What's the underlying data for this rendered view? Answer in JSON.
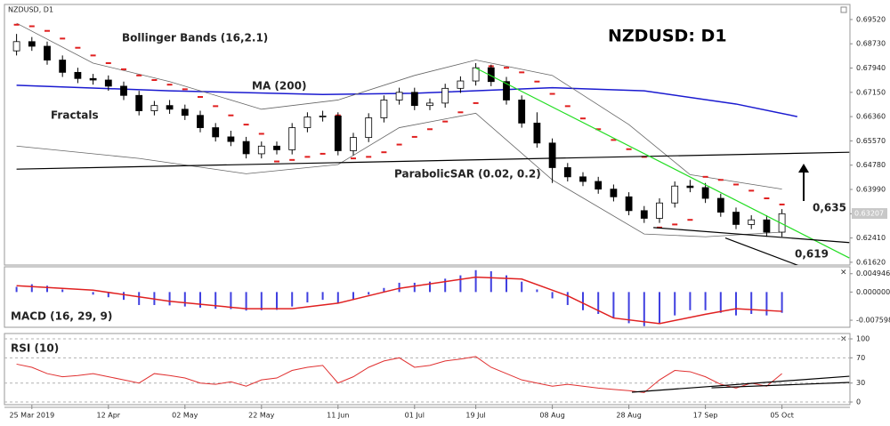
{
  "chart_data": [
    {
      "type": "candlestick",
      "title": "NZDUSD: D1",
      "subtitle": "NZDUSD, D1",
      "categories": [
        null,
        "25 Mar 2019",
        null,
        null,
        null,
        null,
        "12 Apr",
        null,
        null,
        null,
        null,
        "02 May",
        null,
        null,
        null,
        null,
        "22 May",
        null,
        null,
        null,
        null,
        "11 Jun",
        null,
        null,
        null,
        null,
        "01 Jul",
        null,
        null,
        null,
        "19 Jul",
        null,
        null,
        null,
        null,
        "08 Aug",
        null,
        null,
        null,
        null,
        "28 Aug",
        null,
        null,
        null,
        null,
        "17 Sep",
        null,
        null,
        null,
        null,
        "05 Oct"
      ],
      "open": [
        0.685,
        0.688,
        0.6865,
        0.682,
        0.678,
        0.676,
        0.6755,
        0.6735,
        0.6705,
        0.6655,
        0.6672,
        0.666,
        0.664,
        0.66,
        0.657,
        0.6555,
        0.6515,
        0.654,
        0.6528,
        0.66,
        0.6635,
        0.6638,
        0.6525,
        0.6568,
        0.6632,
        0.669,
        0.6715,
        0.6672,
        0.668,
        0.6728,
        0.6752,
        0.6795,
        0.675,
        0.669,
        0.6615,
        0.655,
        0.647,
        0.644,
        0.6425,
        0.64,
        0.6375,
        0.633,
        0.6305,
        0.6355,
        0.641,
        0.6405,
        0.637,
        0.6325,
        0.6285,
        0.63,
        0.626
      ],
      "high": [
        0.6905,
        0.6895,
        0.688,
        0.6835,
        0.6795,
        0.6775,
        0.677,
        0.675,
        0.672,
        0.6687,
        0.669,
        0.6675,
        0.6655,
        0.6615,
        0.659,
        0.657,
        0.6555,
        0.6555,
        0.6615,
        0.665,
        0.6655,
        0.665,
        0.6583,
        0.6647,
        0.6705,
        0.673,
        0.673,
        0.6695,
        0.6743,
        0.6767,
        0.681,
        0.6805,
        0.6765,
        0.6705,
        0.665,
        0.6565,
        0.6485,
        0.6455,
        0.644,
        0.6415,
        0.639,
        0.6345,
        0.637,
        0.6425,
        0.643,
        0.642,
        0.6385,
        0.634,
        0.6315,
        0.6315,
        0.6335
      ],
      "low": [
        0.6835,
        0.685,
        0.6805,
        0.6765,
        0.6745,
        0.674,
        0.672,
        0.669,
        0.664,
        0.664,
        0.6645,
        0.6625,
        0.6585,
        0.6555,
        0.654,
        0.65,
        0.65,
        0.6513,
        0.6513,
        0.6585,
        0.662,
        0.651,
        0.651,
        0.6553,
        0.6617,
        0.6675,
        0.6657,
        0.6657,
        0.6665,
        0.6713,
        0.6737,
        0.6735,
        0.6675,
        0.66,
        0.6535,
        0.642,
        0.6425,
        0.641,
        0.6385,
        0.636,
        0.6315,
        0.629,
        0.629,
        0.634,
        0.639,
        0.6355,
        0.631,
        0.627,
        0.627,
        0.6245,
        0.6245
      ],
      "close": [
        0.688,
        0.6865,
        0.682,
        0.678,
        0.676,
        0.6755,
        0.6735,
        0.6705,
        0.6655,
        0.6672,
        0.666,
        0.664,
        0.66,
        0.657,
        0.6555,
        0.6515,
        0.654,
        0.6528,
        0.66,
        0.6635,
        0.6638,
        0.6525,
        0.6568,
        0.6632,
        0.669,
        0.6715,
        0.6672,
        0.668,
        0.6728,
        0.6752,
        0.6795,
        0.675,
        0.669,
        0.6615,
        0.655,
        0.647,
        0.644,
        0.6425,
        0.64,
        0.6375,
        0.633,
        0.6305,
        0.6355,
        0.641,
        0.6405,
        0.637,
        0.6325,
        0.6285,
        0.63,
        0.626,
        0.632
      ],
      "up_color": "#ffffff",
      "down_color": "#000000",
      "ylim": [
        0.6153,
        0.7001
      ],
      "yticks": [
        {
          "value": 0.6952,
          "label": "0.69520"
        },
        {
          "value": 0.6873,
          "label": "0.68730"
        },
        {
          "value": 0.6794,
          "label": "0.67940"
        },
        {
          "value": 0.6715,
          "label": "0.67150"
        },
        {
          "value": 0.6636,
          "label": "0.66360"
        },
        {
          "value": 0.6557,
          "label": "0.65570"
        },
        {
          "value": 0.6478,
          "label": "0.64780"
        },
        {
          "value": 0.6399,
          "label": "0.63990"
        },
        {
          "value": 0.632,
          "label": "0.63200"
        },
        {
          "value": 0.6241,
          "label": "0.62410"
        },
        {
          "value": 0.6162,
          "label": "0.61620"
        }
      ],
      "last_price": 0.63207,
      "series": [
        {
          "name": "MA (200)",
          "color": "#1a1ad0",
          "x": [
            0,
            10,
            20,
            26,
            35,
            41,
            47,
            51
          ],
          "values": [
            0.6738,
            0.672,
            0.6708,
            0.6712,
            0.673,
            0.672,
            0.6677,
            0.6636
          ]
        },
        {
          "name": "Bollinger Bands (16,2.1)",
          "color": "#666666",
          "x": [
            0,
            5,
            10,
            16,
            21,
            26,
            30,
            35,
            40,
            44,
            50
          ],
          "values": [
            0.694,
            0.681,
            0.675,
            0.666,
            0.669,
            0.677,
            0.682,
            0.677,
            0.661,
            0.6447,
            0.64
          ]
        },
        {
          "color": "#666666",
          "x": [
            0,
            8,
            15,
            21,
            25,
            30,
            35,
            41,
            45,
            50
          ],
          "values": [
            0.654,
            0.65,
            0.645,
            0.648,
            0.66,
            0.6647,
            0.643,
            0.6254,
            0.6245,
            0.626
          ]
        },
        {
          "name": "ParabolicSAR (0.02, 0.2)",
          "color": "#e02020",
          "style": "dots",
          "values": [
            0.6935,
            0.693,
            0.6915,
            0.689,
            0.686,
            0.6835,
            0.681,
            0.679,
            0.677,
            0.6755,
            0.674,
            0.6725,
            0.67,
            0.667,
            0.664,
            0.661,
            0.658,
            0.649,
            0.6495,
            0.6505,
            0.6515,
            0.664,
            0.65,
            0.6505,
            0.652,
            0.6545,
            0.657,
            0.6595,
            0.662,
            0.665,
            0.668,
            0.68,
            0.6795,
            0.678,
            0.675,
            0.671,
            0.667,
            0.663,
            0.6595,
            0.656,
            0.653,
            0.6505,
            0.6275,
            0.6285,
            0.63,
            0.644,
            0.643,
            0.6415,
            0.6395,
            0.637,
            0.635
          ]
        }
      ],
      "trend_lines": [
        {
          "color": "#000000",
          "x": [
            0,
            54.4
          ],
          "values": [
            0.6465,
            0.652
          ]
        },
        {
          "color": "#22dd22",
          "x": [
            30,
            54.4
          ],
          "values": [
            0.6794,
            0.6176
          ]
        },
        {
          "color": "#000000",
          "x": [
            41.6,
            54.4
          ],
          "values": [
            0.6275,
            0.6226
          ]
        },
        {
          "color": "#000000",
          "x": [
            46.3,
            51.2
          ],
          "values": [
            0.6241,
            0.6149
          ]
        }
      ],
      "annotations": [
        {
          "text": "Fractals"
        },
        {
          "text": "0,635"
        },
        {
          "text": "0,619"
        }
      ]
    },
    {
      "type": "macd",
      "title": "MACD (16, 29, 9)",
      "ylim": [
        -0.0095,
        0.0068
      ],
      "yticks": [
        0.004946,
        {
          "value": 0,
          "label": "0.000000"
        },
        -0.007598
      ],
      "histogram": {
        "color": "#4040e0",
        "values": [
          0.0014,
          0.0021,
          0.0017,
          0.0007,
          0,
          -0.0007,
          -0.0014,
          -0.0021,
          -0.0035,
          -0.0035,
          -0.0036,
          -0.0039,
          -0.0042,
          -0.0045,
          -0.0046,
          -0.005,
          -0.0049,
          -0.0048,
          -0.0039,
          -0.0028,
          -0.0021,
          -0.0031,
          -0.0021,
          -0.0007,
          0.0011,
          0.0025,
          0.0025,
          0.0028,
          0.0036,
          0.0045,
          0.0059,
          0.0056,
          0.0045,
          0.0028,
          0.0007,
          -0.0017,
          -0.0035,
          -0.0049,
          -0.0059,
          -0.007,
          -0.0084,
          -0.0092,
          -0.0084,
          -0.0063,
          -0.0049,
          -0.0049,
          -0.0056,
          -0.0063,
          -0.0059,
          -0.0063,
          -0.0056
        ]
      },
      "signal": {
        "color": "#e02020",
        "x": [
          0,
          5,
          10,
          15,
          18,
          21,
          25,
          30,
          33,
          36,
          39,
          42,
          45,
          47,
          50
        ],
        "values": [
          0.0017,
          0.0005,
          -0.0025,
          -0.0045,
          -0.0045,
          -0.003,
          0.001,
          0.004,
          0.0035,
          -0.001,
          -0.007,
          -0.0085,
          -0.006,
          -0.0045,
          -0.0052
        ]
      }
    },
    {
      "type": "line",
      "title": "RSI (10)",
      "ylim": [
        -4.2,
        108.5
      ],
      "yticks": [
        100,
        70,
        30,
        0
      ],
      "grid": true,
      "series": [
        {
          "color": "#e03030",
          "values": [
            60,
            55,
            45,
            40,
            42,
            45,
            40,
            35,
            30,
            45,
            42,
            38,
            30,
            28,
            32,
            25,
            35,
            38,
            50,
            55,
            58,
            30,
            40,
            55,
            65,
            70,
            55,
            58,
            65,
            68,
            72,
            55,
            45,
            35,
            30,
            25,
            28,
            25,
            22,
            20,
            18,
            15,
            35,
            50,
            48,
            40,
            28,
            22,
            30,
            25,
            45
          ]
        }
      ],
      "trend_lines": [
        {
          "color": "#000000",
          "x": [
            40.2,
            54.4
          ],
          "values": [
            15.5,
            40.8
          ]
        },
        {
          "color": "#000000",
          "x": [
            45.4,
            54.4
          ],
          "values": [
            22.5,
            31
          ]
        }
      ]
    }
  ]
}
